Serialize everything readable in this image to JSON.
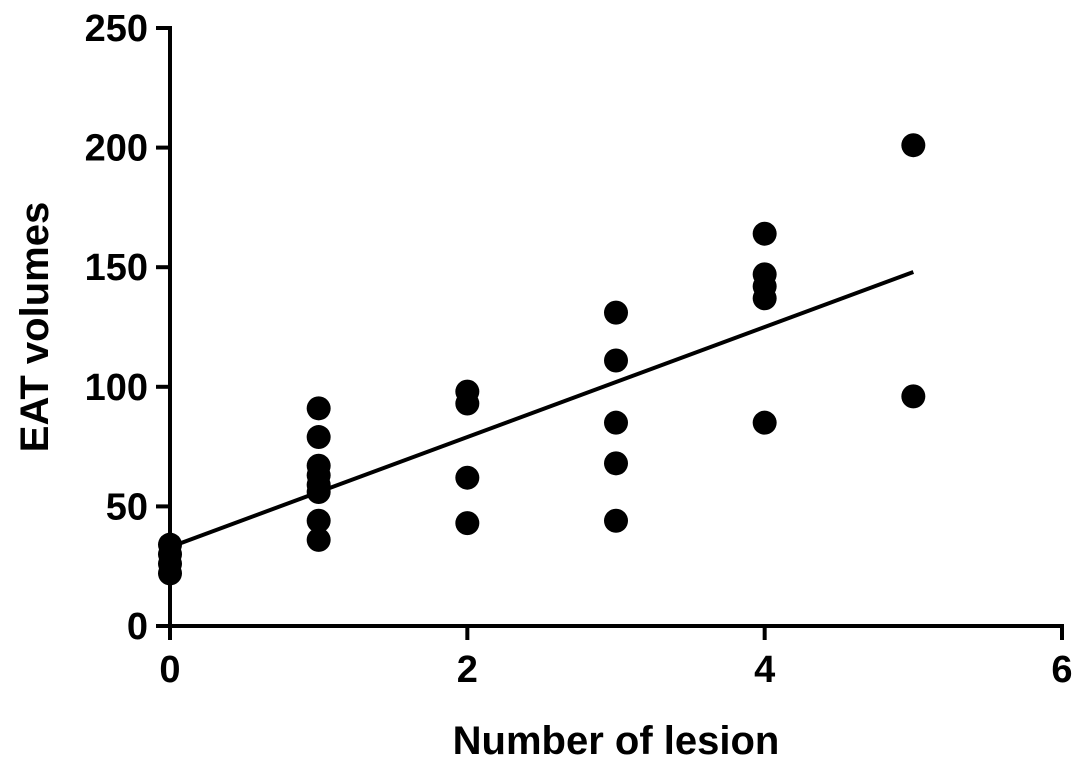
{
  "chart_data": {
    "type": "scatter",
    "title": "",
    "xlabel": "Number of lesion",
    "ylabel": "EAT volumes",
    "xlim": [
      0,
      6
    ],
    "ylim": [
      0,
      250
    ],
    "xticks": [
      0,
      2,
      4,
      6
    ],
    "xtick_labels": [
      "0",
      "2",
      "4",
      "6"
    ],
    "yticks": [
      0,
      50,
      100,
      150,
      200,
      250
    ],
    "ytick_labels": [
      "0",
      "50",
      "100",
      "150",
      "200",
      "250"
    ],
    "grid": false,
    "legend": "none",
    "colors": {
      "points": "#000000",
      "line": "#000000",
      "axes": "#000000"
    },
    "series": [
      {
        "type": "scatter",
        "points": [
          {
            "x": 0,
            "y": 34
          },
          {
            "x": 0,
            "y": 30
          },
          {
            "x": 0,
            "y": 26
          },
          {
            "x": 0,
            "y": 22
          },
          {
            "x": 1,
            "y": 91
          },
          {
            "x": 1,
            "y": 79
          },
          {
            "x": 1,
            "y": 67
          },
          {
            "x": 1,
            "y": 63
          },
          {
            "x": 1,
            "y": 59
          },
          {
            "x": 1,
            "y": 56
          },
          {
            "x": 1,
            "y": 44
          },
          {
            "x": 1,
            "y": 36
          },
          {
            "x": 2,
            "y": 98
          },
          {
            "x": 2,
            "y": 93
          },
          {
            "x": 2,
            "y": 62
          },
          {
            "x": 2,
            "y": 43
          },
          {
            "x": 3,
            "y": 131
          },
          {
            "x": 3,
            "y": 111
          },
          {
            "x": 3,
            "y": 85
          },
          {
            "x": 3,
            "y": 68
          },
          {
            "x": 3,
            "y": 44
          },
          {
            "x": 4,
            "y": 164
          },
          {
            "x": 4,
            "y": 147
          },
          {
            "x": 4,
            "y": 142
          },
          {
            "x": 4,
            "y": 137
          },
          {
            "x": 4,
            "y": 85
          },
          {
            "x": 5,
            "y": 201
          },
          {
            "x": 5,
            "y": 96
          }
        ]
      },
      {
        "type": "line",
        "points": [
          {
            "x": 0,
            "y": 33
          },
          {
            "x": 5,
            "y": 148
          }
        ]
      }
    ]
  }
}
